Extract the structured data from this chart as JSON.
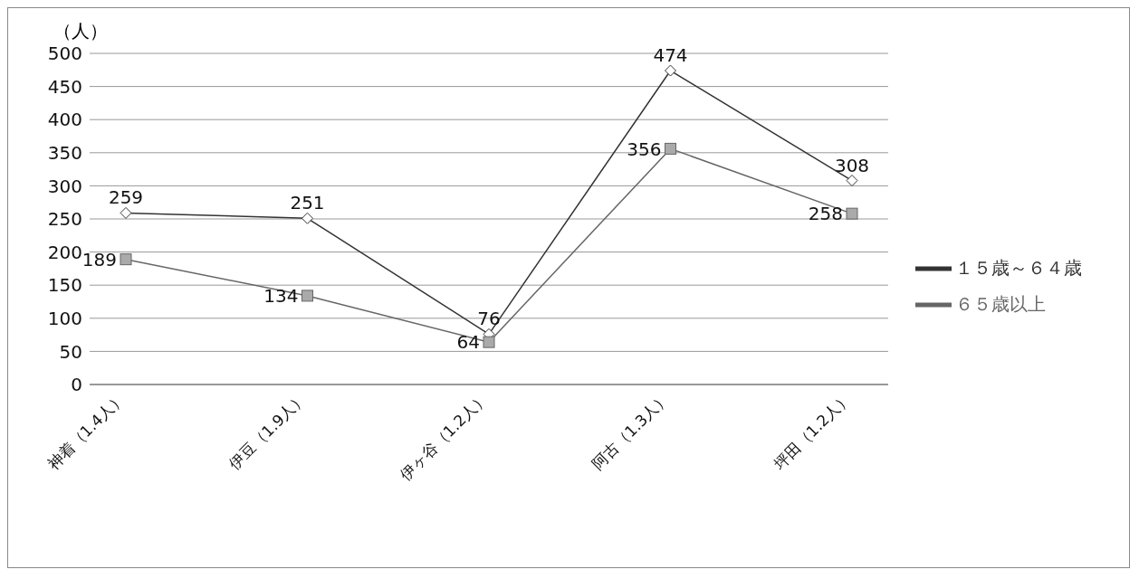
{
  "chart_data": {
    "type": "line",
    "ylabel": "（人）",
    "categories": [
      "神着（1.4人）",
      "伊豆（1.9人）",
      "伊ヶ谷（1.2人）",
      "阿古（1.3人）",
      "坪田（1.2人）"
    ],
    "series": [
      {
        "name": "１５歳～６４歳",
        "color": "#333333",
        "marker": "diamond",
        "values": [
          259,
          251,
          76,
          474,
          308
        ]
      },
      {
        "name": "６５歳以上",
        "color": "#666666",
        "marker": "square",
        "values": [
          189,
          134,
          64,
          356,
          258
        ]
      }
    ],
    "ylim": [
      0,
      500
    ],
    "yticks": [
      0,
      50,
      100,
      150,
      200,
      250,
      300,
      350,
      400,
      450,
      500
    ],
    "grid": "y",
    "legend": "right",
    "data_labels": true
  }
}
